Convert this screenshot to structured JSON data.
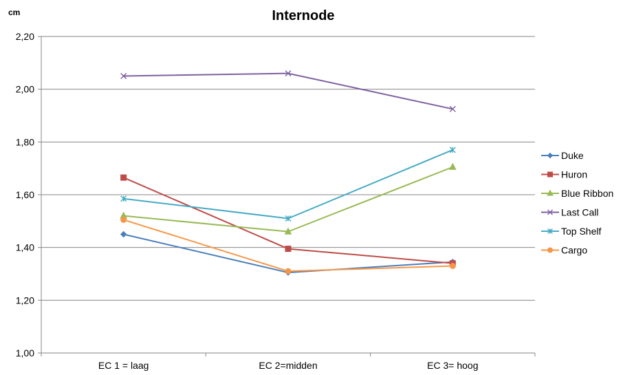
{
  "chart_data": {
    "type": "line",
    "title": "Internode",
    "unit_label": "cm",
    "categories": [
      "EC 1 = laag",
      "EC 2=midden",
      "EC 3= hoog"
    ],
    "ylim": [
      1.0,
      2.2
    ],
    "yticks": [
      "1,00",
      "1,20",
      "1,40",
      "1,60",
      "1,80",
      "2,00",
      "2,20"
    ],
    "ytick_values": [
      1.0,
      1.2,
      1.4,
      1.6,
      1.8,
      2.0,
      2.2
    ],
    "grid": "horizontal",
    "legend_position": "right",
    "series": [
      {
        "name": "Duke",
        "values": [
          1.45,
          1.305,
          1.345
        ],
        "color": "#4A7EBB",
        "marker": "diamond"
      },
      {
        "name": "Huron",
        "values": [
          1.665,
          1.395,
          1.34
        ],
        "color": "#BE4B48",
        "marker": "square"
      },
      {
        "name": "Blue Ribbon",
        "values": [
          1.52,
          1.46,
          1.705
        ],
        "color": "#98B954",
        "marker": "triangle"
      },
      {
        "name": "Last Call",
        "values": [
          2.05,
          2.06,
          1.925
        ],
        "color": "#7D60A0",
        "marker": "x"
      },
      {
        "name": "Top Shelf",
        "values": [
          1.585,
          1.51,
          1.77
        ],
        "color": "#46AAC5",
        "marker": "star"
      },
      {
        "name": "Cargo",
        "values": [
          1.505,
          1.31,
          1.33
        ],
        "color": "#F79646",
        "marker": "circle"
      }
    ]
  }
}
